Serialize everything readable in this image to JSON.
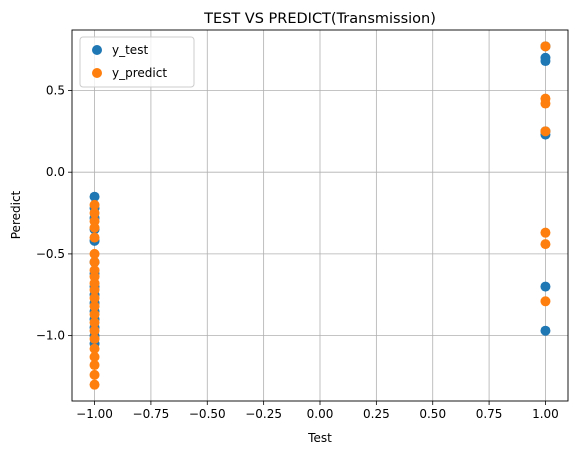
{
  "chart_data": {
    "type": "scatter",
    "title": "TEST VS PREDICT(Transmission)",
    "xlabel": "Test",
    "ylabel": "Peredict",
    "xlim": [
      -1.1,
      1.1
    ],
    "ylim": [
      -1.4,
      0.87
    ],
    "xticks": [
      -1.0,
      -0.75,
      -0.5,
      -0.25,
      0.0,
      0.25,
      0.5,
      0.75,
      1.0
    ],
    "xtick_labels": [
      "−1.00",
      "−0.75",
      "−0.50",
      "−0.25",
      "0.00",
      "0.25",
      "0.50",
      "0.75",
      "1.00"
    ],
    "yticks": [
      -1.0,
      -0.5,
      0.0,
      0.5
    ],
    "ytick_labels": [
      "−1.0",
      "−0.5",
      "0.0",
      "0.5"
    ],
    "grid": true,
    "legend_position": "top-left",
    "series": [
      {
        "name": "y_test",
        "color": "#1f77b4",
        "points": [
          [
            -1,
            -0.15
          ],
          [
            -1,
            -0.22
          ],
          [
            -1,
            -0.28
          ],
          [
            -1,
            -0.35
          ],
          [
            -1,
            -0.42
          ],
          [
            -1,
            -0.55
          ],
          [
            -1,
            -0.62
          ],
          [
            -1,
            -0.7
          ],
          [
            -1,
            -0.75
          ],
          [
            -1,
            -0.8
          ],
          [
            -1,
            -0.85
          ],
          [
            -1,
            -0.9
          ],
          [
            -1,
            -0.95
          ],
          [
            -1,
            -1.0
          ],
          [
            -1,
            -1.05
          ],
          [
            1,
            0.77
          ],
          [
            1,
            0.7
          ],
          [
            1,
            0.68
          ],
          [
            1,
            0.25
          ],
          [
            1,
            0.23
          ],
          [
            1,
            -0.7
          ],
          [
            1,
            -0.97
          ]
        ]
      },
      {
        "name": "y_predict",
        "color": "#ff7f0e",
        "points": [
          [
            -1,
            -0.2
          ],
          [
            -1,
            -0.25
          ],
          [
            -1,
            -0.3
          ],
          [
            -1,
            -0.34
          ],
          [
            -1,
            -0.4
          ],
          [
            -1,
            -0.5
          ],
          [
            -1,
            -0.55
          ],
          [
            -1,
            -0.6
          ],
          [
            -1,
            -0.64
          ],
          [
            -1,
            -0.68
          ],
          [
            -1,
            -0.72
          ],
          [
            -1,
            -0.77
          ],
          [
            -1,
            -0.82
          ],
          [
            -1,
            -0.87
          ],
          [
            -1,
            -0.92
          ],
          [
            -1,
            -0.97
          ],
          [
            -1,
            -1.02
          ],
          [
            -1,
            -1.08
          ],
          [
            -1,
            -1.13
          ],
          [
            -1,
            -1.18
          ],
          [
            -1,
            -1.24
          ],
          [
            -1,
            -1.3
          ],
          [
            1,
            0.77
          ],
          [
            1,
            0.45
          ],
          [
            1,
            0.42
          ],
          [
            1,
            0.25
          ],
          [
            1,
            -0.37
          ],
          [
            1,
            -0.44
          ],
          [
            1,
            -0.79
          ]
        ]
      }
    ]
  }
}
